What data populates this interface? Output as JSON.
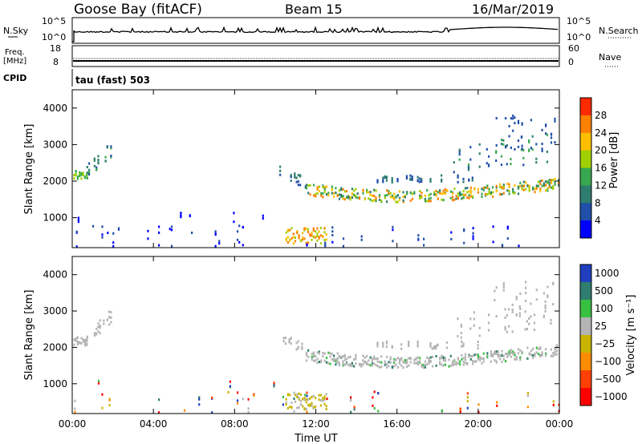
{
  "header": {
    "station": "Goose Bay (fitACF)",
    "beam": "Beam 15",
    "date": "16/Mar/2019"
  },
  "nsky_panel": {
    "left_label": "N.Sky",
    "right_label": "N.Search",
    "tick_top": "10^5",
    "tick_bottom": "10^0",
    "right_tick_top": "10^5",
    "right_tick_bottom": "10^0"
  },
  "freq_panel": {
    "left_label_line1": "Freq.",
    "left_label_line2": "[MHz]",
    "right_label": "Nave",
    "tick_top": "18",
    "tick_bottom": "8",
    "right_tick_top": "60",
    "right_tick_bottom": "0"
  },
  "cpid_panel": {
    "label": "CPID",
    "value": "tau (fast) 503"
  },
  "colors": {
    "power": [
      "#0000ff",
      "#1f4fa8",
      "#2e7d6e",
      "#38a850",
      "#a0d000",
      "#ffbf00",
      "#ff7f00",
      "#ff2a00"
    ],
    "velocity": [
      "#1f3fbf",
      "#2e7d6e",
      "#38c040",
      "#b4b4b4",
      "#c8b400",
      "#ff8c00",
      "#ff4000",
      "#ff0000"
    ]
  },
  "chart_data": [
    {
      "type": "heatmap",
      "name": "power",
      "ylabel": "Slant Range [km]",
      "ylim": [
        180,
        4500
      ],
      "y_ticks": [
        "1000",
        "2000",
        "3000",
        "4000"
      ],
      "x_ticks": [
        "00:00",
        "04:00",
        "08:00",
        "12:00",
        "16:00",
        "20:00",
        "00:00"
      ],
      "colorbar_label": "Power [dB]",
      "colorbar_ticks": [
        "4",
        "8",
        "12",
        "16",
        "20",
        "24",
        "28"
      ]
    },
    {
      "type": "heatmap",
      "name": "velocity",
      "ylabel": "Slant Range [km]",
      "ylim": [
        180,
        4500
      ],
      "y_ticks": [
        "1000",
        "2000",
        "3000",
        "4000"
      ],
      "x_ticks": [
        "00:00",
        "04:00",
        "08:00",
        "12:00",
        "16:00",
        "20:00",
        "00:00"
      ],
      "xlabel": "Time UT",
      "colorbar_label": "Velocity [m s⁻¹]",
      "colorbar_ticks": [
        "1000",
        "500",
        "100",
        "25",
        "−25",
        "−100",
        "−500",
        "−1000"
      ]
    }
  ]
}
